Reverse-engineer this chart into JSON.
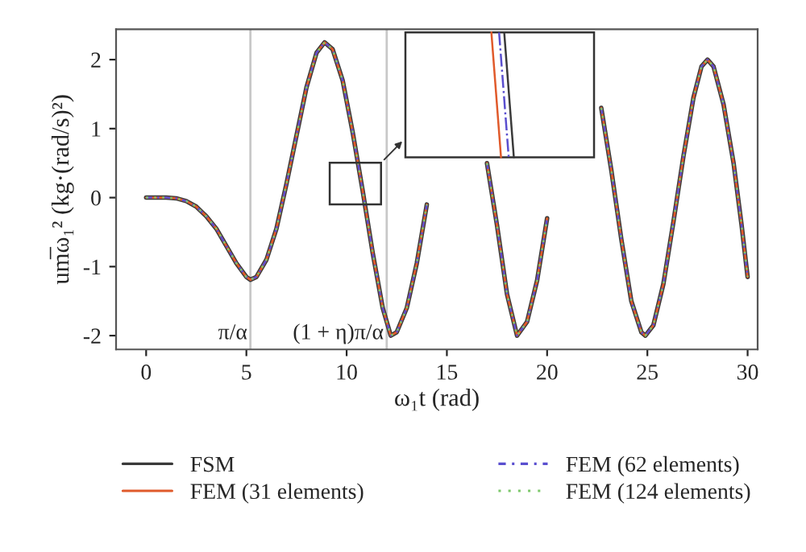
{
  "chart_data": {
    "type": "line",
    "xlabel": "ω₁t (rad)",
    "ylabel": "um̅ω₁² (kg·(rad/s)²)",
    "x": [
      0,
      1,
      1.5,
      2,
      2.5,
      3,
      3.5,
      4,
      4.5,
      5,
      5.2,
      5.5,
      6,
      6.5,
      7,
      7.5,
      8,
      8.5,
      8.9,
      9.3,
      9.8,
      10.3,
      10.8,
      11.3,
      11.8,
      12.2,
      12.5,
      13,
      13.5,
      14,
      14.5,
      15,
      15.3,
      15.6,
      16,
      16.5,
      17,
      17.5,
      18,
      18.5,
      19,
      19.5,
      20,
      20.5,
      21,
      21.5,
      21.8,
      22.2,
      22.7,
      23.2,
      23.7,
      24.2,
      24.7,
      24.9,
      25.3,
      25.8,
      26.3,
      26.8,
      27.3,
      27.7,
      28.0,
      28.3,
      28.8,
      29.3,
      29.7,
      30
    ],
    "series": [
      {
        "name": "FSM",
        "color": "#3a3a3a",
        "line_style": "solid",
        "values": [
          0,
          0,
          -0.01,
          -0.05,
          -0.13,
          -0.27,
          -0.45,
          -0.7,
          -0.95,
          -1.15,
          -1.19,
          -1.15,
          -0.9,
          -0.45,
          0.2,
          0.9,
          1.6,
          2.1,
          2.25,
          2.15,
          1.7,
          0.95,
          0.1,
          -0.8,
          -1.6,
          -2.0,
          -1.95,
          -1.6,
          -0.95,
          -0.1,
          null,
          null,
          null,
          null,
          null,
          null,
          0.5,
          -0.4,
          -1.4,
          -2.0,
          -1.8,
          -1.2,
          -0.3,
          null,
          null,
          null,
          null,
          null,
          1.3,
          0.4,
          -0.6,
          -1.5,
          -1.95,
          -2.0,
          -1.85,
          -1.25,
          -0.35,
          0.6,
          1.45,
          1.9,
          2.0,
          1.9,
          1.35,
          0.5,
          -0.4,
          -1.15
        ]
      },
      {
        "name": "FEM (31 elements)",
        "color": "#e05a2b",
        "line_style": "solid",
        "values": [
          0,
          0,
          -0.01,
          -0.05,
          -0.13,
          -0.27,
          -0.45,
          -0.7,
          -0.95,
          -1.15,
          -1.19,
          -1.15,
          -0.9,
          -0.45,
          0.2,
          0.9,
          1.6,
          2.1,
          2.25,
          2.15,
          1.7,
          0.95,
          0.1,
          -0.8,
          -1.6,
          -2.0,
          -1.95,
          -1.6,
          -0.95,
          -0.1,
          null,
          null,
          null,
          null,
          null,
          null,
          0.5,
          -0.4,
          -1.4,
          -2.0,
          -1.8,
          -1.2,
          -0.3,
          null,
          null,
          null,
          null,
          null,
          1.3,
          0.4,
          -0.6,
          -1.5,
          -1.95,
          -2.0,
          -1.85,
          -1.25,
          -0.35,
          0.6,
          1.45,
          1.9,
          2.0,
          1.9,
          1.35,
          0.5,
          -0.4,
          -1.15
        ]
      },
      {
        "name": "FEM (62 elements)",
        "color": "#5a4fcf",
        "line_style": "dashdot",
        "values": [
          0,
          0,
          -0.01,
          -0.05,
          -0.13,
          -0.27,
          -0.45,
          -0.7,
          -0.95,
          -1.15,
          -1.19,
          -1.15,
          -0.9,
          -0.45,
          0.2,
          0.9,
          1.6,
          2.1,
          2.25,
          2.15,
          1.7,
          0.95,
          0.1,
          -0.8,
          -1.6,
          -2.0,
          -1.95,
          -1.6,
          -0.95,
          -0.1,
          null,
          null,
          null,
          null,
          null,
          null,
          0.5,
          -0.4,
          -1.4,
          -2.0,
          -1.8,
          -1.2,
          -0.3,
          null,
          null,
          null,
          null,
          null,
          1.3,
          0.4,
          -0.6,
          -1.5,
          -1.95,
          -2.0,
          -1.85,
          -1.25,
          -0.35,
          0.6,
          1.45,
          1.9,
          2.0,
          1.9,
          1.35,
          0.5,
          -0.4,
          -1.15
        ]
      },
      {
        "name": "FEM (124 elements)",
        "color": "#7cc86a",
        "line_style": "dotted",
        "values": [
          0,
          0,
          -0.01,
          -0.05,
          -0.13,
          -0.27,
          -0.45,
          -0.7,
          -0.95,
          -1.15,
          -1.19,
          -1.15,
          -0.9,
          -0.45,
          0.2,
          0.9,
          1.6,
          2.1,
          2.25,
          2.15,
          1.7,
          0.95,
          0.1,
          -0.8,
          -1.6,
          -2.0,
          -1.95,
          -1.6,
          -0.95,
          -0.1,
          null,
          null,
          null,
          null,
          null,
          null,
          0.5,
          -0.4,
          -1.4,
          -2.0,
          -1.8,
          -1.2,
          -0.3,
          null,
          null,
          null,
          null,
          null,
          1.3,
          0.4,
          -0.6,
          -1.5,
          -1.95,
          -2.0,
          -1.85,
          -1.25,
          -0.35,
          0.6,
          1.45,
          1.9,
          2.0,
          1.9,
          1.35,
          0.5,
          -0.4,
          -1.15
        ]
      }
    ],
    "xlim": [
      -1.5,
      30.5
    ],
    "ylim": [
      -2.2,
      2.44
    ],
    "xticks": [
      0,
      5,
      10,
      15,
      20,
      25,
      30
    ],
    "yticks": [
      -2,
      -1,
      0,
      1,
      2
    ],
    "ref_lines": [
      {
        "axis": "x",
        "value": 5.2,
        "label": "π/α",
        "color": "#c8c8c8"
      },
      {
        "axis": "x",
        "value": 12.0,
        "label": "(1 + η)π/α",
        "color": "#c8c8c8"
      }
    ],
    "grid": false,
    "legend": "bottom",
    "marker": "none"
  }
}
